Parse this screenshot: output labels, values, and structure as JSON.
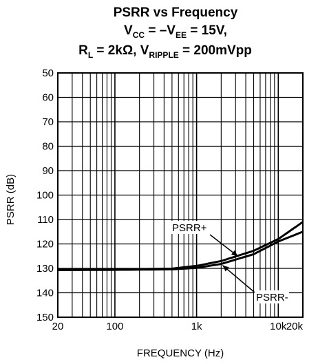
{
  "chart_data": {
    "type": "line",
    "title": {
      "line1": "PSRR vs Frequency",
      "line2": {
        "v1": "V",
        "v1_sub": "CC",
        "mid": " = –V",
        "v2_sub": "EE",
        "end": " = 15V,"
      },
      "line3": {
        "start": "R",
        "start_sub": "L",
        "mid": " = 2kΩ, V",
        "sub": "RIPPLE",
        "end": " = 200mVpp"
      }
    },
    "xlabel": "FREQUENCY (Hz)",
    "ylabel": "PSRR (dB)",
    "x_scale": "log",
    "xlim": [
      20,
      20000
    ],
    "ylim": [
      150,
      50
    ],
    "y_inverted": true,
    "grid": true,
    "x_ticks": [
      {
        "value": 20,
        "label": "20"
      },
      {
        "value": 100,
        "label": "100"
      },
      {
        "value": 1000,
        "label": "1k"
      },
      {
        "value": 10000,
        "label": "10k"
      },
      {
        "value": 20000,
        "label": "20k"
      }
    ],
    "y_ticks": [
      50,
      60,
      70,
      80,
      90,
      100,
      110,
      120,
      130,
      140,
      150
    ],
    "series": [
      {
        "name": "PSRR+",
        "x": [
          20,
          100,
          500,
          1000,
          2000,
          5000,
          10000,
          20000
        ],
        "y": [
          130.5,
          130.5,
          130.1,
          129.0,
          127.0,
          122.8,
          118.0,
          111.0
        ]
      },
      {
        "name": "PSRR-",
        "x": [
          20,
          100,
          500,
          1000,
          2000,
          5000,
          10000,
          20000
        ],
        "y": [
          130.7,
          130.6,
          130.4,
          129.8,
          128.2,
          124.2,
          119.0,
          115.0
        ]
      }
    ],
    "annotations": [
      "PSRR+",
      "PSRR-"
    ]
  }
}
